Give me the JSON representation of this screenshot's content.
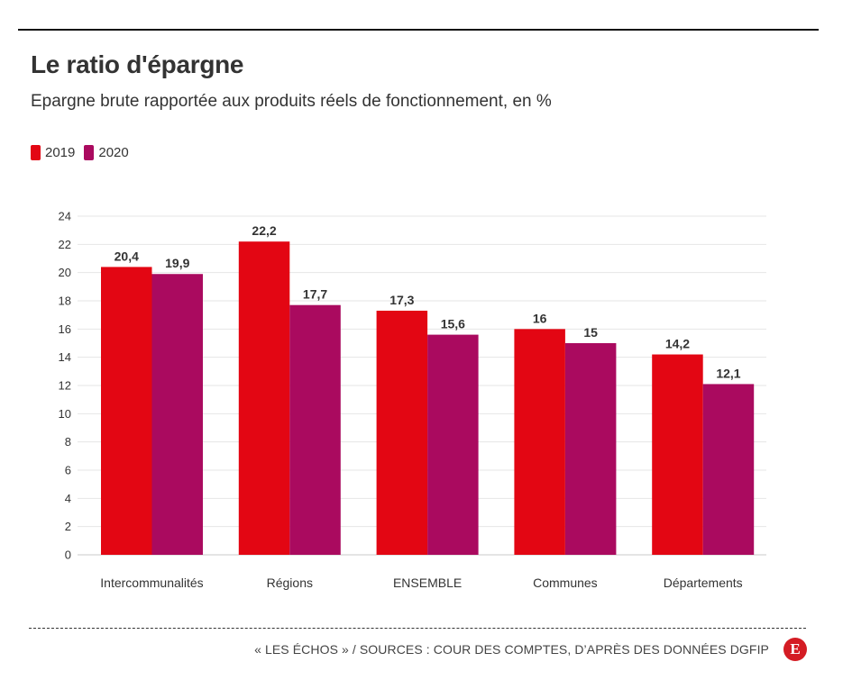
{
  "header": {
    "title": "Le ratio d'épargne",
    "subtitle": "Epargne brute rapportée aux produits réels de fonctionnement, en %"
  },
  "footer": {
    "source": "« LES ÉCHOS » / SOURCES : COUR DES COMPTES, D’APRÈS DES DONNÉES DGFIP",
    "logo_letter": "E"
  },
  "colors": {
    "series_2019": "#e30613",
    "series_2020": "#aa0a5f",
    "grid": "#e6e6e6",
    "text": "#333333"
  },
  "chart_data": {
    "type": "bar",
    "title": "Le ratio d'épargne",
    "subtitle": "Epargne brute rapportée aux produits réels de fonctionnement, en %",
    "categories": [
      "Intercommunalités",
      "Régions",
      "ENSEMBLE",
      "Communes",
      "Départements"
    ],
    "series": [
      {
        "name": "2019",
        "values": [
          20.4,
          22.2,
          17.3,
          16,
          14.2
        ],
        "labels": [
          "20,4",
          "22,2",
          "17,3",
          "16",
          "14,2"
        ],
        "color": "#e30613"
      },
      {
        "name": "2020",
        "values": [
          19.9,
          17.7,
          15.6,
          15,
          12.1
        ],
        "labels": [
          "19,9",
          "17,7",
          "15,6",
          "15",
          "12,1"
        ],
        "color": "#aa0a5f"
      }
    ],
    "ylim": [
      0,
      24
    ],
    "yticks": [
      0,
      2,
      4,
      6,
      8,
      10,
      12,
      14,
      16,
      18,
      20,
      22,
      24
    ],
    "xlabel": "",
    "ylabel": "",
    "grid": true,
    "legend": "top-left"
  }
}
